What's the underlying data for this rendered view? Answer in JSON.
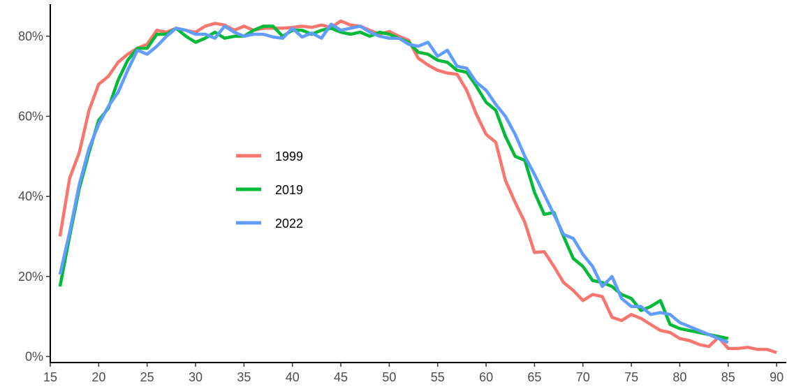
{
  "chart_data": {
    "type": "line",
    "title": "",
    "xlabel": "",
    "ylabel": "",
    "xlim": [
      15,
      91
    ],
    "ylim": [
      -1.5,
      88
    ],
    "x_ticks": [
      15,
      20,
      25,
      30,
      35,
      40,
      45,
      50,
      55,
      60,
      65,
      70,
      75,
      80,
      85,
      90
    ],
    "x_tick_labels": [
      "15",
      "20",
      "25",
      "30",
      "35",
      "40",
      "45",
      "50",
      "55",
      "60",
      "65",
      "70",
      "75",
      "80",
      "85",
      "90"
    ],
    "y_ticks": [
      0,
      20,
      40,
      60,
      80
    ],
    "y_tick_labels": [
      "0%",
      "20%",
      "40%",
      "60%",
      "80%"
    ],
    "grid": false,
    "legend_position": "center-left",
    "series": [
      {
        "name": "1999",
        "color": "#F8766D",
        "x": [
          16,
          17,
          18,
          19,
          20,
          21,
          22,
          23,
          24,
          25,
          26,
          27,
          28,
          29,
          30,
          31,
          32,
          33,
          34,
          35,
          36,
          37,
          38,
          39,
          40,
          41,
          42,
          43,
          44,
          45,
          46,
          47,
          48,
          49,
          50,
          51,
          52,
          53,
          54,
          55,
          56,
          57,
          58,
          59,
          60,
          61,
          62,
          63,
          64,
          65,
          66,
          67,
          68,
          69,
          70,
          71,
          72,
          73,
          74,
          75,
          76,
          77,
          78,
          79,
          80,
          81,
          82,
          83,
          84,
          85,
          86,
          87,
          88,
          89,
          90
        ],
        "values": [
          30,
          44.5,
          51,
          61.5,
          68,
          70,
          73.5,
          75.5,
          77,
          78,
          81.5,
          81,
          82,
          81.5,
          81,
          82.5,
          83.2,
          82.8,
          81.5,
          82.5,
          81.5,
          82,
          82,
          82,
          82.2,
          82.5,
          82.2,
          82.8,
          82.2,
          83.8,
          82.8,
          82.5,
          81.5,
          80.5,
          81.2,
          80,
          79,
          74.5,
          72.8,
          71.5,
          70.8,
          70.5,
          66.5,
          60.5,
          55.5,
          53.5,
          44,
          38.5,
          33.5,
          26,
          26.2,
          22.5,
          18.5,
          16.5,
          14,
          15.5,
          15,
          9.8,
          9,
          10.5,
          9.5,
          8,
          6.5,
          6,
          4.5,
          4,
          3,
          2.5,
          4.8,
          2,
          2,
          2.3,
          1.8,
          1.8,
          1
        ]
      },
      {
        "name": "2019",
        "color": "#00BA38",
        "x": [
          16,
          17,
          18,
          19,
          20,
          21,
          22,
          23,
          24,
          25,
          26,
          27,
          28,
          29,
          30,
          31,
          32,
          33,
          34,
          35,
          36,
          37,
          38,
          39,
          40,
          41,
          42,
          43,
          44,
          45,
          46,
          47,
          48,
          49,
          50,
          51,
          52,
          53,
          54,
          55,
          56,
          57,
          58,
          59,
          60,
          61,
          62,
          63,
          64,
          65,
          66,
          67,
          68,
          69,
          70,
          71,
          72,
          73,
          74,
          75,
          76,
          77,
          78,
          79,
          80,
          85
        ],
        "values": [
          17.5,
          30,
          42,
          51,
          59,
          62,
          69,
          74,
          77,
          77,
          80.5,
          80.5,
          82,
          80,
          78.5,
          79.5,
          81,
          79.5,
          80,
          80,
          81.5,
          82.5,
          82.5,
          80,
          81.5,
          81.5,
          80.5,
          81.5,
          82,
          81,
          80.5,
          81,
          80,
          81,
          80.5,
          79.5,
          78.5,
          76,
          75.5,
          74,
          73.5,
          71.5,
          71,
          67.5,
          63.5,
          61.5,
          55,
          50,
          49,
          41,
          35.5,
          36,
          30,
          24.5,
          22.5,
          19,
          18.5,
          17.5,
          15.5,
          14.5,
          11.5,
          12.5,
          14,
          8,
          7,
          4.5
        ]
      },
      {
        "name": "2022",
        "color": "#619CFF",
        "x": [
          16,
          17,
          18,
          19,
          20,
          21,
          22,
          23,
          24,
          25,
          26,
          27,
          28,
          29,
          30,
          31,
          32,
          33,
          34,
          35,
          36,
          37,
          38,
          39,
          40,
          41,
          42,
          43,
          44,
          45,
          46,
          47,
          48,
          49,
          50,
          51,
          52,
          53,
          54,
          55,
          56,
          57,
          58,
          59,
          60,
          61,
          62,
          63,
          64,
          65,
          66,
          67,
          68,
          69,
          70,
          71,
          72,
          73,
          74,
          75,
          76,
          77,
          78,
          79,
          80,
          85
        ],
        "values": [
          20.5,
          31,
          43,
          52,
          58,
          62.5,
          66,
          71.5,
          76.5,
          75.5,
          77.5,
          80,
          82,
          81.5,
          80.5,
          80.5,
          79.5,
          82.5,
          81,
          80,
          80.5,
          80.5,
          79.8,
          79.5,
          82,
          79.8,
          80.8,
          79.5,
          83,
          81.5,
          82,
          82.5,
          81,
          80,
          79.5,
          79.5,
          78,
          77.5,
          78.5,
          75,
          76.5,
          72.5,
          72,
          68.5,
          66.5,
          63,
          60,
          55.5,
          50,
          45.5,
          40.5,
          35.5,
          30.5,
          29.5,
          25.5,
          22.5,
          17.5,
          20,
          14.5,
          12.5,
          12.5,
          10.5,
          11,
          10.5,
          8.5,
          3.5
        ]
      }
    ]
  }
}
